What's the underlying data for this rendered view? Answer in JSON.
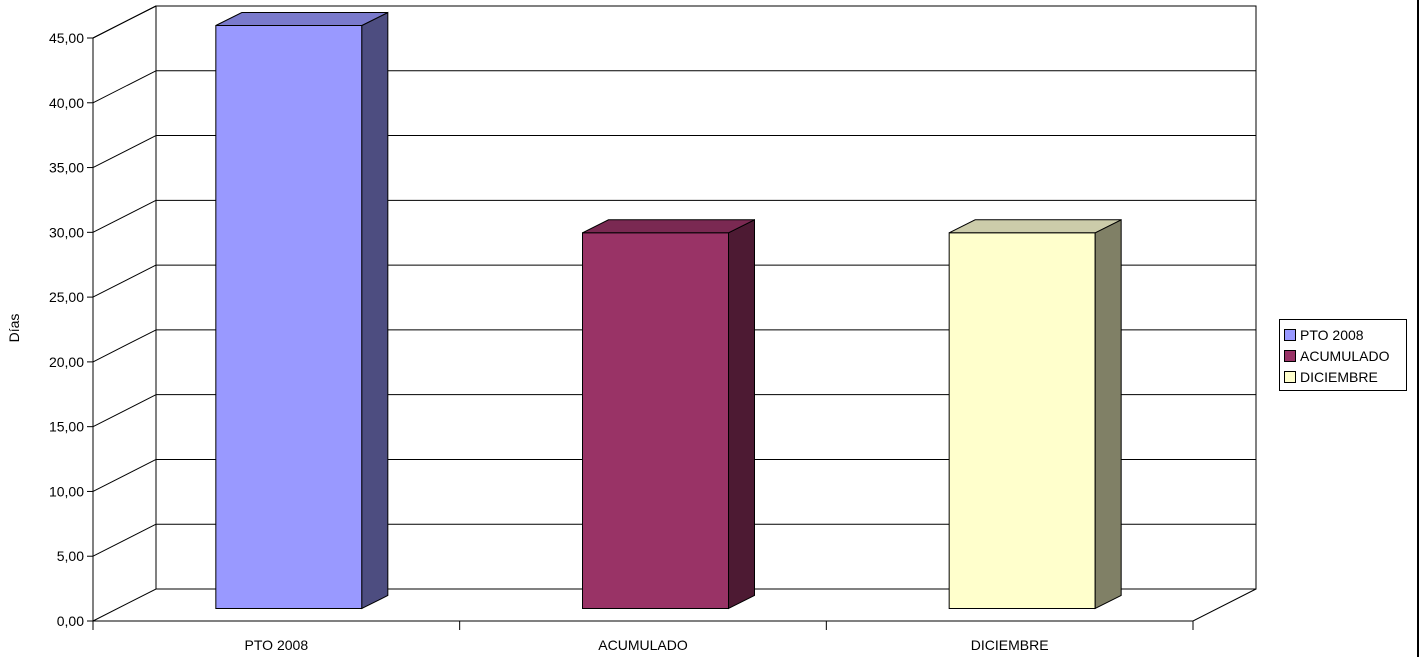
{
  "chart_data": {
    "type": "bar",
    "categories": [
      "PTO 2008",
      "ACUMULADO",
      "DICIEMBRE"
    ],
    "series": [
      {
        "name": "PTO 2008",
        "values": [
          45.0,
          null,
          null
        ]
      },
      {
        "name": "ACUMULADO",
        "values": [
          null,
          29.0,
          null
        ]
      },
      {
        "name": "DICIEMBRE",
        "values": [
          null,
          null,
          29.0
        ]
      }
    ],
    "values": [
      45.0,
      29.0,
      29.0
    ],
    "ylabel": "Días",
    "xlabel": "",
    "ylim": [
      0,
      45
    ],
    "yticks": [
      "0,00",
      "5,00",
      "10,00",
      "15,00",
      "20,00",
      "25,00",
      "30,00",
      "35,00",
      "40,00",
      "45,00"
    ],
    "grid": true,
    "legend_position": "right",
    "three_d": true,
    "colors": {
      "PTO 2008": {
        "front": "#9999ff",
        "side": "#4d4d80",
        "top": "#7a7acc"
      },
      "ACUMULADO": {
        "front": "#993366",
        "side": "#4d1a33",
        "top": "#7a2952"
      },
      "DICIEMBRE": {
        "front": "#ffffcc",
        "side": "#808066",
        "top": "#ccccaa"
      }
    }
  },
  "legend": {
    "items": [
      {
        "label": "PTO 2008",
        "color": "#9999ff"
      },
      {
        "label": "ACUMULADO",
        "color": "#993366"
      },
      {
        "label": "DICIEMBRE",
        "color": "#ffffcc"
      }
    ]
  }
}
